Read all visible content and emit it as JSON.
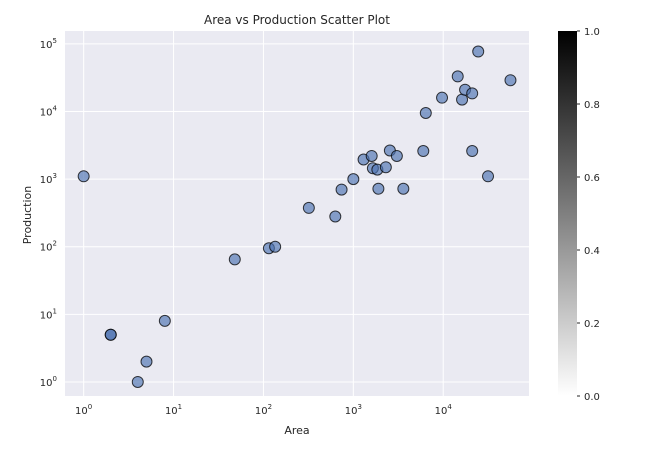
{
  "chart_data": {
    "type": "scatter",
    "title": "Area vs Production Scatter Plot",
    "xlabel": "Area",
    "ylabel": "Production",
    "xscale": "log",
    "yscale": "log",
    "xlim": [
      0.62,
      90000
    ],
    "ylim": [
      0.62,
      155000
    ],
    "grid": true,
    "marker_color": "#4c72b0",
    "marker_edge_color": "#000000",
    "x_ticks": [
      {
        "base": "10",
        "exp": "0",
        "value": 1
      },
      {
        "base": "10",
        "exp": "1",
        "value": 10
      },
      {
        "base": "10",
        "exp": "2",
        "value": 100
      },
      {
        "base": "10",
        "exp": "3",
        "value": 1000
      },
      {
        "base": "10",
        "exp": "4",
        "value": 10000
      }
    ],
    "y_ticks": [
      {
        "base": "10",
        "exp": "0",
        "value": 1
      },
      {
        "base": "10",
        "exp": "1",
        "value": 10
      },
      {
        "base": "10",
        "exp": "2",
        "value": 100
      },
      {
        "base": "10",
        "exp": "3",
        "value": 1000
      },
      {
        "base": "10",
        "exp": "4",
        "value": 10000
      },
      {
        "base": "10",
        "exp": "5",
        "value": 100000
      }
    ],
    "points": [
      {
        "x": 1,
        "y": 1100
      },
      {
        "x": 2,
        "y": 5
      },
      {
        "x": 2,
        "y": 5
      },
      {
        "x": 4,
        "y": 1
      },
      {
        "x": 5,
        "y": 2
      },
      {
        "x": 8,
        "y": 8
      },
      {
        "x": 48,
        "y": 65
      },
      {
        "x": 115,
        "y": 95
      },
      {
        "x": 135,
        "y": 100
      },
      {
        "x": 320,
        "y": 375
      },
      {
        "x": 630,
        "y": 280
      },
      {
        "x": 740,
        "y": 700
      },
      {
        "x": 1000,
        "y": 1000
      },
      {
        "x": 1300,
        "y": 1950
      },
      {
        "x": 1600,
        "y": 2200
      },
      {
        "x": 1650,
        "y": 1450
      },
      {
        "x": 1850,
        "y": 1380
      },
      {
        "x": 1900,
        "y": 720
      },
      {
        "x": 2300,
        "y": 1500
      },
      {
        "x": 2550,
        "y": 2650
      },
      {
        "x": 3050,
        "y": 2200
      },
      {
        "x": 3600,
        "y": 720
      },
      {
        "x": 6000,
        "y": 2600
      },
      {
        "x": 6400,
        "y": 9500
      },
      {
        "x": 9700,
        "y": 16000
      },
      {
        "x": 14500,
        "y": 33000
      },
      {
        "x": 16200,
        "y": 15000
      },
      {
        "x": 17500,
        "y": 21000
      },
      {
        "x": 21000,
        "y": 18500
      },
      {
        "x": 21000,
        "y": 2600
      },
      {
        "x": 24500,
        "y": 77000
      },
      {
        "x": 31500,
        "y": 1100
      },
      {
        "x": 56000,
        "y": 29000
      }
    ],
    "colorbar": {
      "ticks": [
        "0.0",
        "0.2",
        "0.4",
        "0.6",
        "0.8",
        "1.0"
      ],
      "range": [
        0,
        1
      ]
    }
  }
}
